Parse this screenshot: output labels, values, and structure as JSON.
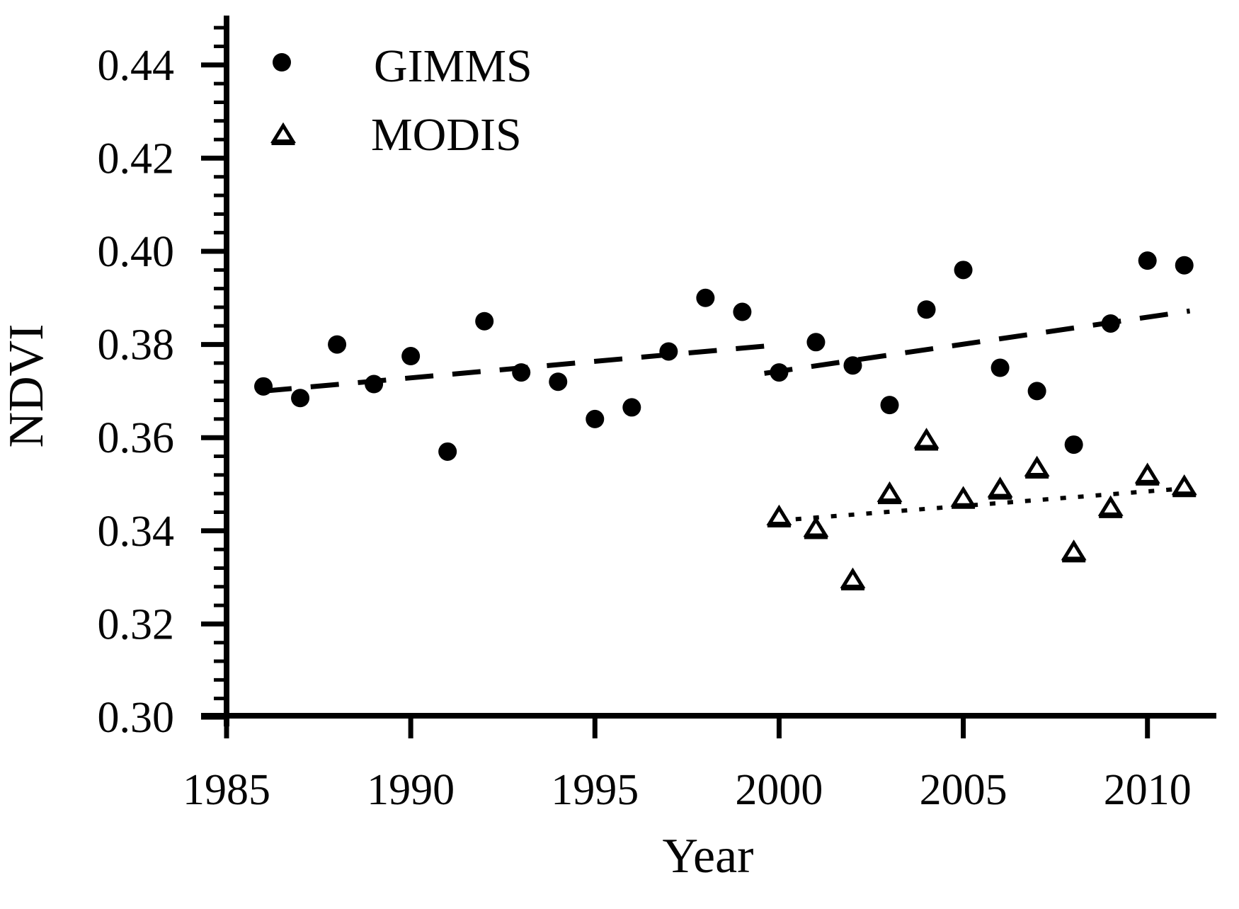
{
  "figure": {
    "background": "#ffffff",
    "ink_color": "#000000"
  },
  "chart_data": {
    "type": "scatter",
    "title": "",
    "xlabel": "Year",
    "ylabel": "NDVI",
    "xlim": [
      1985,
      2011.87
    ],
    "ylim": [
      0.3,
      0.45
    ],
    "x_ticks": [
      1985,
      1990,
      1995,
      2000,
      2005,
      2010
    ],
    "y_ticks": [
      0.3,
      0.32,
      0.34,
      0.36,
      0.38,
      0.4,
      0.42,
      0.44
    ],
    "y_minor_step": 0.004,
    "grid": false,
    "legend": {
      "position": "top-left-inside",
      "items": [
        "GIMMS",
        "MODIS"
      ]
    },
    "series": [
      {
        "name": "GIMMS",
        "marker": "filled-circle",
        "x": [
          1986,
          1987,
          1988,
          1989,
          1990,
          1991,
          1992,
          1993,
          1994,
          1995,
          1996,
          1997,
          1998,
          1999,
          2000,
          2001,
          2002,
          2003,
          2004,
          2005,
          2006,
          2007,
          2008,
          2009,
          2010,
          2011
        ],
        "y": [
          0.371,
          0.3685,
          0.38,
          0.3715,
          0.3775,
          0.357,
          0.385,
          0.374,
          0.372,
          0.364,
          0.3665,
          0.3785,
          0.39,
          0.387,
          0.374,
          0.3805,
          0.3755,
          0.367,
          0.3875,
          0.396,
          0.375,
          0.37,
          0.3585,
          0.3845,
          0.398,
          0.397
        ]
      },
      {
        "name": "MODIS",
        "marker": "open-triangle",
        "x": [
          2000,
          2001,
          2002,
          2003,
          2004,
          2005,
          2006,
          2007,
          2008,
          2009,
          2010,
          2011
        ],
        "y": [
          0.343,
          0.3405,
          0.3295,
          0.348,
          0.3595,
          0.347,
          0.349,
          0.3535,
          0.3355,
          0.345,
          0.352,
          0.3495
        ]
      }
    ],
    "trend_lines": [
      {
        "series": "GIMMS",
        "style": "long-dash",
        "x1": 1986.0,
        "y1": 0.37,
        "x2": 2000.1,
        "y2": 0.38
      },
      {
        "series": "GIMMS",
        "style": "long-dash",
        "x1": 1999.6,
        "y1": 0.3738,
        "x2": 2011.15,
        "y2": 0.3872
      },
      {
        "series": "MODIS",
        "style": "dotted",
        "x1": 2000.45,
        "y1": 0.3425,
        "x2": 2010.85,
        "y2": 0.349
      }
    ]
  }
}
